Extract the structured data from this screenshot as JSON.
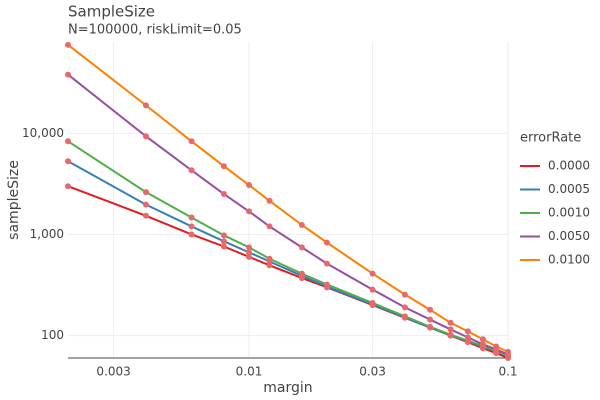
{
  "chart_data": {
    "type": "line",
    "title": "SampleSize",
    "subtitle": "N=100000, riskLimit=0.05",
    "x_label": "margin",
    "y_label": "sampleSize",
    "legend_title": "errorRate",
    "legend_position": "right",
    "log_x": true,
    "log_y": true,
    "grid": true,
    "marker_color": "#e8696b",
    "x": [
      0.002,
      0.004,
      0.006,
      0.008,
      0.01,
      0.012,
      0.016,
      0.02,
      0.03,
      0.04,
      0.05,
      0.06,
      0.07,
      0.08,
      0.09,
      0.1
    ],
    "series": [
      {
        "name": "0.0000",
        "color": "#e41a1c",
        "values": [
          3000,
          1530,
          1000,
          760,
          600,
          495,
          370,
          300,
          200,
          150,
          120,
          100,
          86,
          75,
          67,
          60
        ]
      },
      {
        "name": "0.0005",
        "color": "#377eb8",
        "values": [
          5300,
          1970,
          1200,
          855,
          665,
          540,
          390,
          305,
          203,
          151,
          120,
          101,
          88,
          77,
          70,
          63
        ]
      },
      {
        "name": "0.0010",
        "color": "#4daf4a",
        "values": [
          8340,
          2620,
          1470,
          980,
          745,
          575,
          410,
          320,
          210,
          155,
          122,
          102,
          89,
          79,
          70,
          63
        ]
      },
      {
        "name": "0.0050",
        "color": "#984ea3",
        "values": [
          38100,
          9340,
          4310,
          2510,
          1690,
          1200,
          745,
          515,
          285,
          190,
          144,
          115,
          96,
          82,
          73,
          65
        ]
      },
      {
        "name": "0.0100",
        "color": "#ff7f00",
        "values": [
          75000,
          18900,
          8340,
          4730,
          3080,
          2150,
          1240,
          830,
          410,
          254,
          180,
          134,
          110,
          92,
          78,
          69
        ]
      }
    ],
    "xlim": [
      0.002,
      0.1
    ],
    "xticks": [
      0.003,
      0.01,
      0.03,
      0.1
    ],
    "ylim": [
      60,
      80000
    ],
    "yticks": [
      {
        "value": 10000,
        "label": "10,000"
      },
      {
        "value": 1000,
        "label": "1,000"
      },
      100
    ]
  }
}
